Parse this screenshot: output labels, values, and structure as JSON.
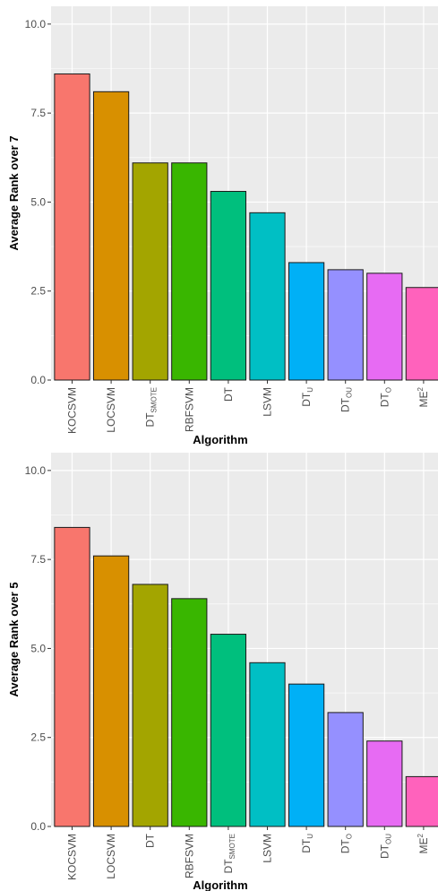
{
  "chart_data": [
    {
      "type": "bar",
      "xlabel": "Algorithm",
      "ylabel": "Average Rank over 7",
      "ylim": [
        0,
        10.5
      ],
      "yticks": [
        "0.0",
        "2.5",
        "5.0",
        "7.5",
        "10.0"
      ],
      "grid": true,
      "categories": [
        {
          "base": "KOCSVM",
          "sub": "",
          "sup": ""
        },
        {
          "base": "LOCSVM",
          "sub": "",
          "sup": ""
        },
        {
          "base": "DT",
          "sub": "SMOTE",
          "sup": ""
        },
        {
          "base": "RBFSVM",
          "sub": "",
          "sup": ""
        },
        {
          "base": "DT",
          "sub": "",
          "sup": ""
        },
        {
          "base": "LSVM",
          "sub": "",
          "sup": ""
        },
        {
          "base": "DT",
          "sub": "U",
          "sup": ""
        },
        {
          "base": "DT",
          "sub": "OU",
          "sup": ""
        },
        {
          "base": "DT",
          "sub": "O",
          "sup": ""
        },
        {
          "base": "ME",
          "sub": "",
          "sup": "2"
        }
      ],
      "values": [
        8.6,
        8.1,
        6.1,
        6.1,
        5.3,
        4.7,
        3.3,
        3.1,
        3.0,
        2.6
      ],
      "colors": [
        "#F8766D",
        "#D89000",
        "#A3A500",
        "#39B600",
        "#00BF7D",
        "#00BFC4",
        "#00B0F6",
        "#9590FF",
        "#E76BF3",
        "#FF62BC"
      ]
    },
    {
      "type": "bar",
      "xlabel": "Algorithm",
      "ylabel": "Average Rank over 5",
      "ylim": [
        0,
        10.5
      ],
      "yticks": [
        "0.0",
        "2.5",
        "5.0",
        "7.5",
        "10.0"
      ],
      "grid": true,
      "categories": [
        {
          "base": "KOCSVM",
          "sub": "",
          "sup": ""
        },
        {
          "base": "LOCSVM",
          "sub": "",
          "sup": ""
        },
        {
          "base": "DT",
          "sub": "",
          "sup": ""
        },
        {
          "base": "RBFSVM",
          "sub": "",
          "sup": ""
        },
        {
          "base": "DT",
          "sub": "SMOTE",
          "sup": ""
        },
        {
          "base": "LSVM",
          "sub": "",
          "sup": ""
        },
        {
          "base": "DT",
          "sub": "U",
          "sup": ""
        },
        {
          "base": "DT",
          "sub": "O",
          "sup": ""
        },
        {
          "base": "DT",
          "sub": "OU",
          "sup": ""
        },
        {
          "base": "ME",
          "sub": "",
          "sup": "2"
        }
      ],
      "values": [
        8.4,
        7.6,
        6.8,
        6.4,
        5.4,
        4.6,
        4.0,
        3.2,
        2.4,
        1.4
      ],
      "colors": [
        "#F8766D",
        "#D89000",
        "#A3A500",
        "#39B600",
        "#00BF7D",
        "#00BFC4",
        "#00B0F6",
        "#9590FF",
        "#E76BF3",
        "#FF62BC"
      ]
    }
  ]
}
